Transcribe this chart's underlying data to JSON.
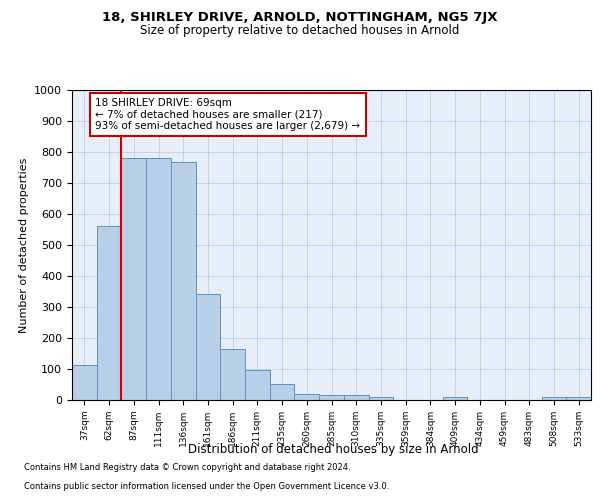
{
  "title1": "18, SHIRLEY DRIVE, ARNOLD, NOTTINGHAM, NG5 7JX",
  "title2": "Size of property relative to detached houses in Arnold",
  "xlabel": "Distribution of detached houses by size in Arnold",
  "ylabel": "Number of detached properties",
  "categories": [
    "37sqm",
    "62sqm",
    "87sqm",
    "111sqm",
    "136sqm",
    "161sqm",
    "186sqm",
    "211sqm",
    "235sqm",
    "260sqm",
    "285sqm",
    "310sqm",
    "335sqm",
    "359sqm",
    "384sqm",
    "409sqm",
    "434sqm",
    "459sqm",
    "483sqm",
    "508sqm",
    "533sqm"
  ],
  "values": [
    113,
    560,
    780,
    780,
    768,
    343,
    163,
    98,
    52,
    18,
    15,
    15,
    10,
    0,
    0,
    10,
    0,
    0,
    0,
    10,
    10
  ],
  "bar_color": "#b8cfe8",
  "bar_edge_color": "#6090c0",
  "vline_index": 1,
  "vline_color": "#cc0000",
  "annotation_text": "18 SHIRLEY DRIVE: 69sqm\n← 7% of detached houses are smaller (217)\n93% of semi-detached houses are larger (2,679) →",
  "ylim_max": 1000,
  "yticks": [
    0,
    100,
    200,
    300,
    400,
    500,
    600,
    700,
    800,
    900,
    1000
  ],
  "bg_color": "#e8eef8",
  "footer1": "Contains HM Land Registry data © Crown copyright and database right 2024.",
  "footer2": "Contains public sector information licensed under the Open Government Licence v3.0."
}
